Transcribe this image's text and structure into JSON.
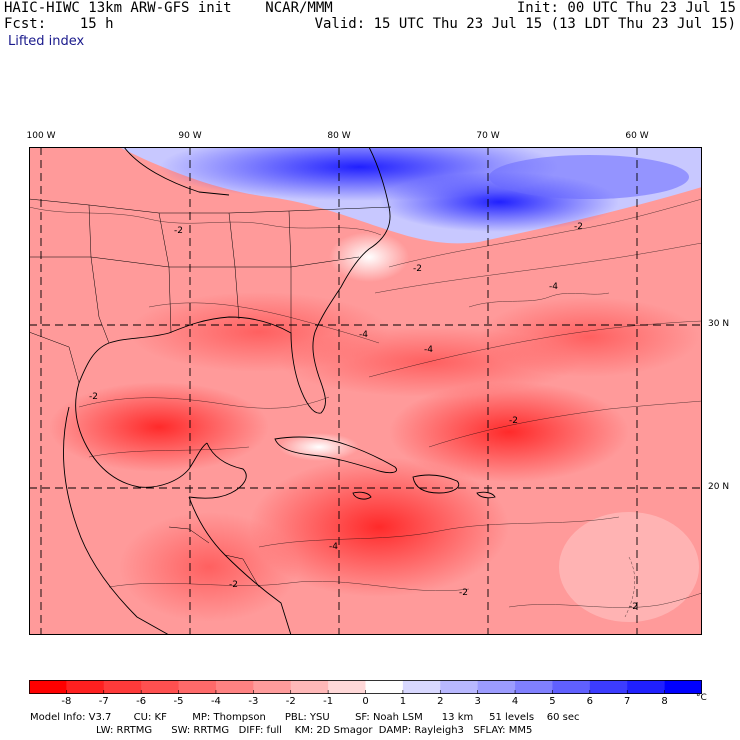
{
  "header": {
    "left_line1": "HAIC-HIWC 13km ARW-GFS init    NCAR/MMM",
    "left_line2": "Fcst:    15 h",
    "right_line1": "Init: 00 UTC Thu 23 Jul 15",
    "right_line2": "Valid: 15 UTC Thu 23 Jul 15 (13 LDT Thu 23 Jul 15)",
    "field_name": "Lifted index"
  },
  "map": {
    "lon_labels": [
      {
        "text": "100 W",
        "lon": -100
      },
      {
        "text": "90 W",
        "lon": -90
      },
      {
        "text": "80 W",
        "lon": -80
      },
      {
        "text": "70 W",
        "lon": -70
      },
      {
        "text": "60 W",
        "lon": -60
      }
    ],
    "lat_labels": [
      {
        "text": "30 N",
        "lat": 30
      },
      {
        "text": "20 N",
        "lat": 20
      }
    ],
    "contour_labels": [
      "-2",
      "-2",
      "-2",
      "-4",
      "-4",
      "-4",
      "-2",
      "-2",
      "-4",
      "-2",
      "-2",
      "-2"
    ],
    "colors": {
      "land_outline": "#000000",
      "grid": "#000000"
    }
  },
  "colorbar": {
    "labels": [
      "-8",
      "-7",
      "-6",
      "-5",
      "-4",
      "-3",
      "-2",
      "-1",
      "0",
      "1",
      "2",
      "3",
      "4",
      "5",
      "6",
      "7",
      "8"
    ],
    "unit": "°C",
    "colors": [
      "#ff0000",
      "#ff2020",
      "#ff3a3a",
      "#ff5050",
      "#ff6a6a",
      "#ff8282",
      "#ff9c9c",
      "#ffb8b8",
      "#ffd8d8",
      "#ffffff",
      "#d8d8ff",
      "#b8b8ff",
      "#9c9cff",
      "#8080ff",
      "#6060ff",
      "#3c3cff",
      "#2020ff",
      "#0000ff"
    ]
  },
  "footer": {
    "line1": "Model Info: V3.7       CU: KF        MP: Thompson      PBL: YSU        SF: Noah LSM      13 km     51 levels    60 sec",
    "line2": "LW: RRTMG      SW: RRTMG   DIFF: full    KM: 2D Smagor  DAMP: Rayleigh3   SFLAY: MM5"
  }
}
